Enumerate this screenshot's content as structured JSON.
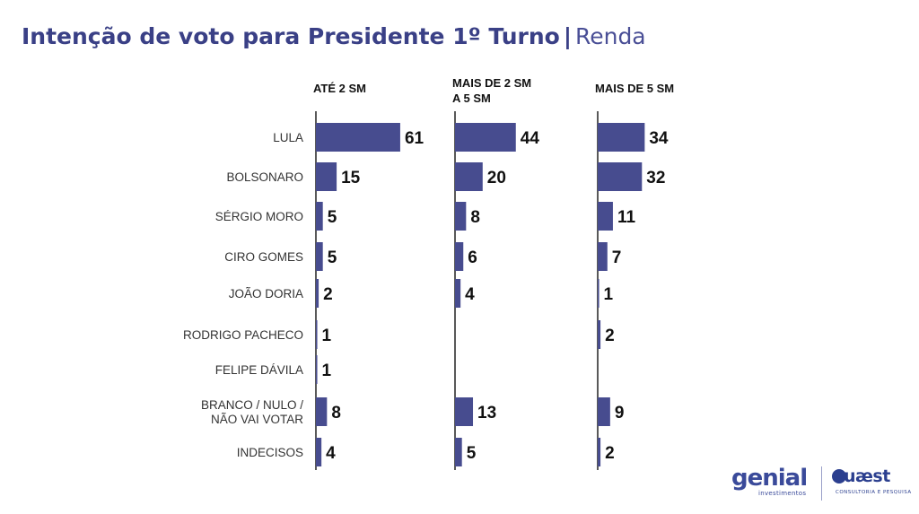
{
  "title": {
    "main": "Intenção de voto para Presidente 1º Turno",
    "separator": "|",
    "sub": "Renda"
  },
  "chart_data": {
    "type": "bar",
    "orientation": "horizontal",
    "categories": [
      "LULA",
      "BOLSONARO",
      "SÉRGIO MORO",
      "CIRO GOMES",
      "JOÃO DORIA",
      "RODRIGO PACHECO",
      "FELIPE DÁVILA",
      "BRANCO / NULO / NÃO VAI VOTAR",
      "INDECISOS"
    ],
    "series": [
      {
        "name": "ATÉ 2  SM",
        "values": [
          61,
          15,
          5,
          5,
          2,
          1,
          1,
          8,
          4
        ]
      },
      {
        "name": "MAIS DE 2 SM A 5 SM",
        "values": [
          44,
          20,
          8,
          6,
          4,
          null,
          null,
          13,
          5
        ]
      },
      {
        "name": "MAIS DE 5 SM",
        "values": [
          34,
          32,
          11,
          7,
          1,
          2,
          null,
          9,
          2
        ]
      }
    ],
    "bar_color": "#474c8f",
    "grid": false,
    "data_labels": true
  },
  "logos": {
    "genial": {
      "word": "genial",
      "tag": "investimentos"
    },
    "quaest": {
      "word": "uæst",
      "tag": "CONSULTORIA E PESQUISA"
    }
  }
}
